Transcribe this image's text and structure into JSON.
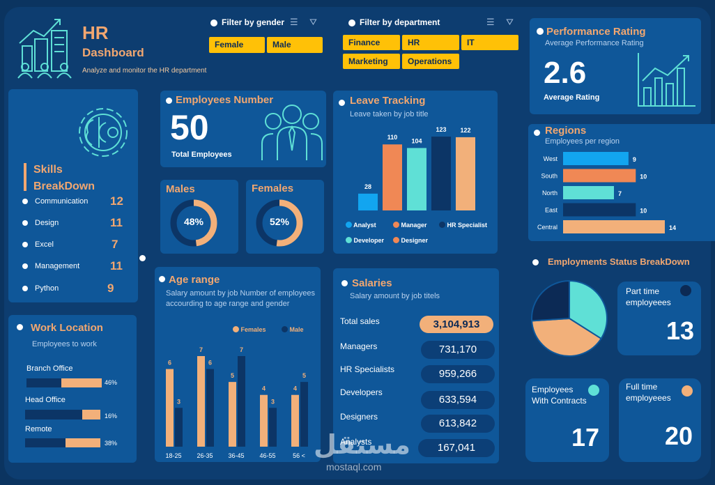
{
  "header": {
    "title": "HR",
    "title2": "Dashboard",
    "subtitle": "Analyze and monitor the HR department"
  },
  "filters": {
    "gender_label": "Filter by gender",
    "gender_options": [
      "Female",
      "Male"
    ],
    "department_label": "Filter by department",
    "department_options": [
      "Finance",
      "HR",
      "IT",
      "Marketing",
      "Operations"
    ]
  },
  "performance": {
    "title": "Performance Rating",
    "subtitle": "Average Performance Rating",
    "value": "2.6",
    "value_label": "Average Rating"
  },
  "skills": {
    "title": "Skills BreakDown",
    "items": [
      {
        "label": "Communication",
        "value": "12"
      },
      {
        "label": "Design",
        "value": "11"
      },
      {
        "label": "Excel",
        "value": "7"
      },
      {
        "label": "Management",
        "value": "11"
      },
      {
        "label": "Python",
        "value": "9"
      }
    ]
  },
  "employees": {
    "title": "Employees Number",
    "value": "50",
    "value_label": "Total Employees"
  },
  "males": {
    "title": "Males",
    "percent_label": "48%",
    "percent": 48
  },
  "females": {
    "title": "Females",
    "percent_label": "52%",
    "percent": 52
  },
  "work_location": {
    "title": "Work Location",
    "subtitle": "Employees to work",
    "items": [
      {
        "label": "Branch Office",
        "percent_label": "46%",
        "percent": 46
      },
      {
        "label": "Head Office",
        "percent_label": "16%",
        "percent": 16
      },
      {
        "label": "Remote",
        "percent_label": "38%",
        "percent": 38
      }
    ]
  },
  "salaries": {
    "title": "Salaries",
    "subtitle": "Salary amount by job titels",
    "rows": [
      {
        "label": "Total sales",
        "value": "3,104,913"
      },
      {
        "label": "Managers",
        "value": "731,170"
      },
      {
        "label": "HR Specialists",
        "value": "959,266"
      },
      {
        "label": "Developers",
        "value": "633,594"
      },
      {
        "label": "Designers",
        "value": "613,842"
      },
      {
        "label": "Analysts",
        "value": "167,041"
      }
    ]
  },
  "status": {
    "title": "Employments Status BreakDown",
    "part_time": {
      "label": "Part time employeees",
      "value": "13",
      "color": "#0c2a55"
    },
    "contracts": {
      "label": "Employees With Contracts",
      "value": "17",
      "color": "#5fe0d6"
    },
    "full_time": {
      "label": "Full time employeees",
      "value": "20",
      "color": "#f2b07a"
    }
  },
  "watermark": {
    "arabic": "مستقل",
    "latin": "mostaql.com"
  },
  "chart_data": [
    {
      "type": "bar",
      "id": "leave",
      "title": "Leave Tracking",
      "subtitle": "Leave taken by job title",
      "categories": [
        "Analyst",
        "Manager",
        "Developer",
        "HR Specialist",
        "Designer"
      ],
      "values": [
        28,
        110,
        104,
        123,
        122
      ],
      "value_labels": [
        "28",
        "110",
        "104",
        "123",
        "122"
      ],
      "colors": [
        "#12a5f0",
        "#f08855",
        "#5fe0d6",
        "#0c3566",
        "#f2b07a"
      ],
      "legend": [
        "Analyst",
        "Manager",
        "HR Specialist",
        "Developer",
        "Designer"
      ],
      "legend_colors": [
        "#12a5f0",
        "#f08855",
        "#0c3566",
        "#5fe0d6",
        "#f08855"
      ],
      "ylim": [
        0,
        130
      ]
    },
    {
      "type": "bar",
      "id": "regions",
      "orientation": "horizontal",
      "title": "Regions",
      "subtitle": "Employees per region",
      "categories": [
        "West",
        "South",
        "North",
        "East",
        "Central"
      ],
      "values": [
        9,
        10,
        7,
        10,
        14
      ],
      "value_labels": [
        "9",
        "10",
        "7",
        "10",
        "14"
      ],
      "colors": [
        "#12a5f0",
        "#f08855",
        "#5fe0d6",
        "#0c3566",
        "#f2b07a"
      ],
      "xlim": [
        0,
        14
      ]
    },
    {
      "type": "bar",
      "id": "age",
      "title": "Age range",
      "subtitle": "Salary amount by job Number of employees accourding to age range and gender",
      "categories": [
        "18-25",
        "26-35",
        "36-45",
        "46-55",
        "56 <"
      ],
      "series": [
        {
          "name": "Females",
          "values": [
            6,
            7,
            5,
            4,
            4
          ],
          "value_labels": [
            "6",
            "7",
            "5",
            "4",
            "4"
          ],
          "color": "#f2b07a"
        },
        {
          "name": "Male",
          "values": [
            3,
            6,
            7,
            3,
            5
          ],
          "value_labels": [
            "3",
            "6",
            "7",
            "3",
            "5"
          ],
          "color": "#0c3566"
        }
      ],
      "ylim": [
        0,
        7
      ]
    },
    {
      "type": "pie",
      "id": "status",
      "title": "Employments Status BreakDown",
      "categories": [
        "Contracts",
        "Full time",
        "Part time"
      ],
      "values": [
        17,
        20,
        13
      ],
      "colors": [
        "#5fe0d6",
        "#f2b07a",
        "#0c2a55"
      ]
    }
  ]
}
